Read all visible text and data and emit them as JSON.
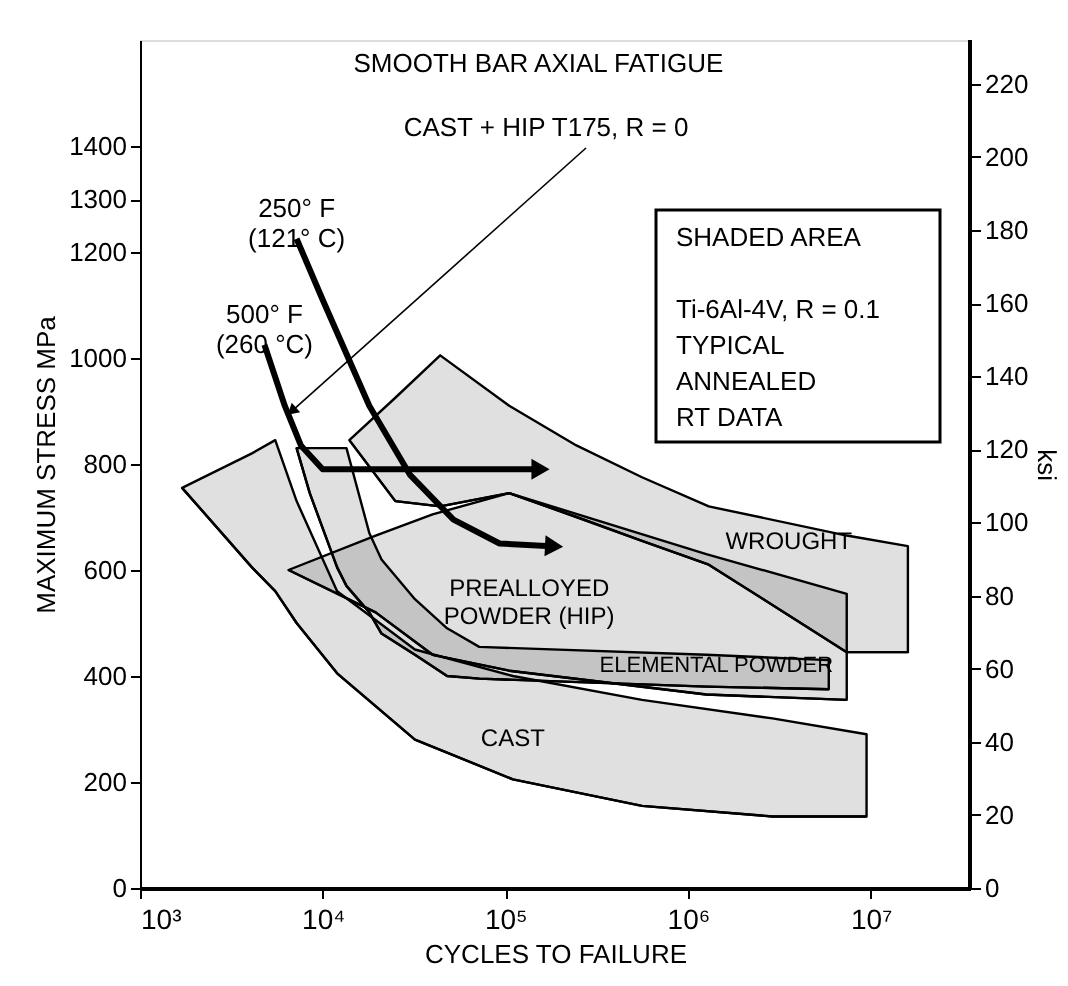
{
  "chart_data": {
    "type": "line",
    "title": "SMOOTH BAR AXIAL FATIGUE",
    "xlabel": "CYCLES TO FAILURE",
    "ylabel": "MAXIMUM STRESS MPa",
    "y2label": "ksi",
    "log": "x",
    "xlim": [
      1000,
      35000000
    ],
    "xticks": [
      {
        "value": 1000,
        "label": "10³"
      },
      {
        "value": 10000,
        "label": "10⁴"
      },
      {
        "value": 100000,
        "label": "10⁵"
      },
      {
        "value": 1000000,
        "label": "10⁶"
      },
      {
        "value": 10000000,
        "label": "10⁷"
      }
    ],
    "ylim": [
      0,
      1600
    ],
    "yticks": [
      0,
      200,
      400,
      600,
      800,
      1000,
      1200,
      1300,
      1400
    ],
    "y2lim": [
      0,
      232
    ],
    "y2ticks": [
      0,
      20,
      40,
      60,
      80,
      100,
      120,
      140,
      160,
      180,
      200,
      220
    ],
    "grid": false,
    "annotations": [
      {
        "text": "CAST + HIP T175, R = 0",
        "x": 6900,
        "y": 902
      },
      "SHADED AREA",
      "Ti-6Al-4V, R = 0.1",
      "TYPICAL",
      "ANNEALED",
      "RT DATA"
    ],
    "series": [
      {
        "name": "WROUGHT",
        "color": "#000000",
        "x": [
          14000,
          25000,
          44000,
          105000,
          245000,
          560000,
          1300000,
          7400000,
          16000000
        ],
        "values": [
          845,
          730,
          720,
          745,
          700,
          655,
          610,
          445,
          445
        ],
        "lower": [
          845,
          730,
          720,
          745,
          700,
          655,
          610,
          445,
          445
        ],
        "upper": [
          845,
          925,
          1005,
          910,
          835,
          775,
          720,
          665,
          645
        ]
      },
      {
        "name": "PREALLOYED POWDER (HIP)",
        "color": "#000000",
        "x": [
          6500,
          19500,
          40000,
          105000,
          1260000,
          7400000
        ],
        "values": [
          600,
          520,
          440,
          410,
          365,
          355
        ],
        "lower": [
          600,
          520,
          440,
          410,
          365,
          355
        ],
        "upper": [
          600,
          665,
          705,
          745,
          630,
          555
        ]
      },
      {
        "name": "ELEMENTAL POWDER",
        "color": "#000000",
        "x": [
          7200,
          8500,
          12000,
          13500,
          18000,
          21000,
          32000,
          48000,
          72000,
          1260000,
          5900000
        ],
        "values": [
          830,
          745,
          605,
          570,
          520,
          480,
          440,
          400,
          395,
          380,
          375
        ],
        "lower": [
          830,
          745,
          605,
          570,
          520,
          480,
          440,
          400,
          395,
          380,
          375
        ],
        "upper": [
          830,
          830,
          830,
          830,
          670,
          620,
          545,
          490,
          455,
          440,
          430
        ]
      },
      {
        "name": "CAST",
        "color": "#000000",
        "x": [
          1700,
          4100,
          5500,
          7200,
          12000,
          32000,
          110000,
          560000,
          2900000,
          9500000
        ],
        "values": [
          755,
          605,
          560,
          500,
          405,
          280,
          205,
          155,
          135,
          135
        ],
        "lower": [
          755,
          605,
          560,
          500,
          405,
          280,
          205,
          155,
          135,
          135
        ],
        "upper": [
          755,
          820,
          845,
          730,
          560,
          450,
          400,
          355,
          320,
          290
        ]
      },
      {
        "type": "line",
        "name": "250° F (121° C)",
        "color": "#000000",
        "x": [
          7200,
          10000,
          18000,
          30000,
          52000,
          93000,
          178000
        ],
        "values": [
          1225,
          1110,
          910,
          780,
          695,
          650,
          645
        ]
      },
      {
        "type": "line",
        "name": "500° F (260 °C)",
        "color": "#000000",
        "x": [
          4800,
          6200,
          7600,
          10000,
          150000
        ],
        "values": [
          1025,
          910,
          835,
          790,
          790
        ]
      }
    ]
  }
}
